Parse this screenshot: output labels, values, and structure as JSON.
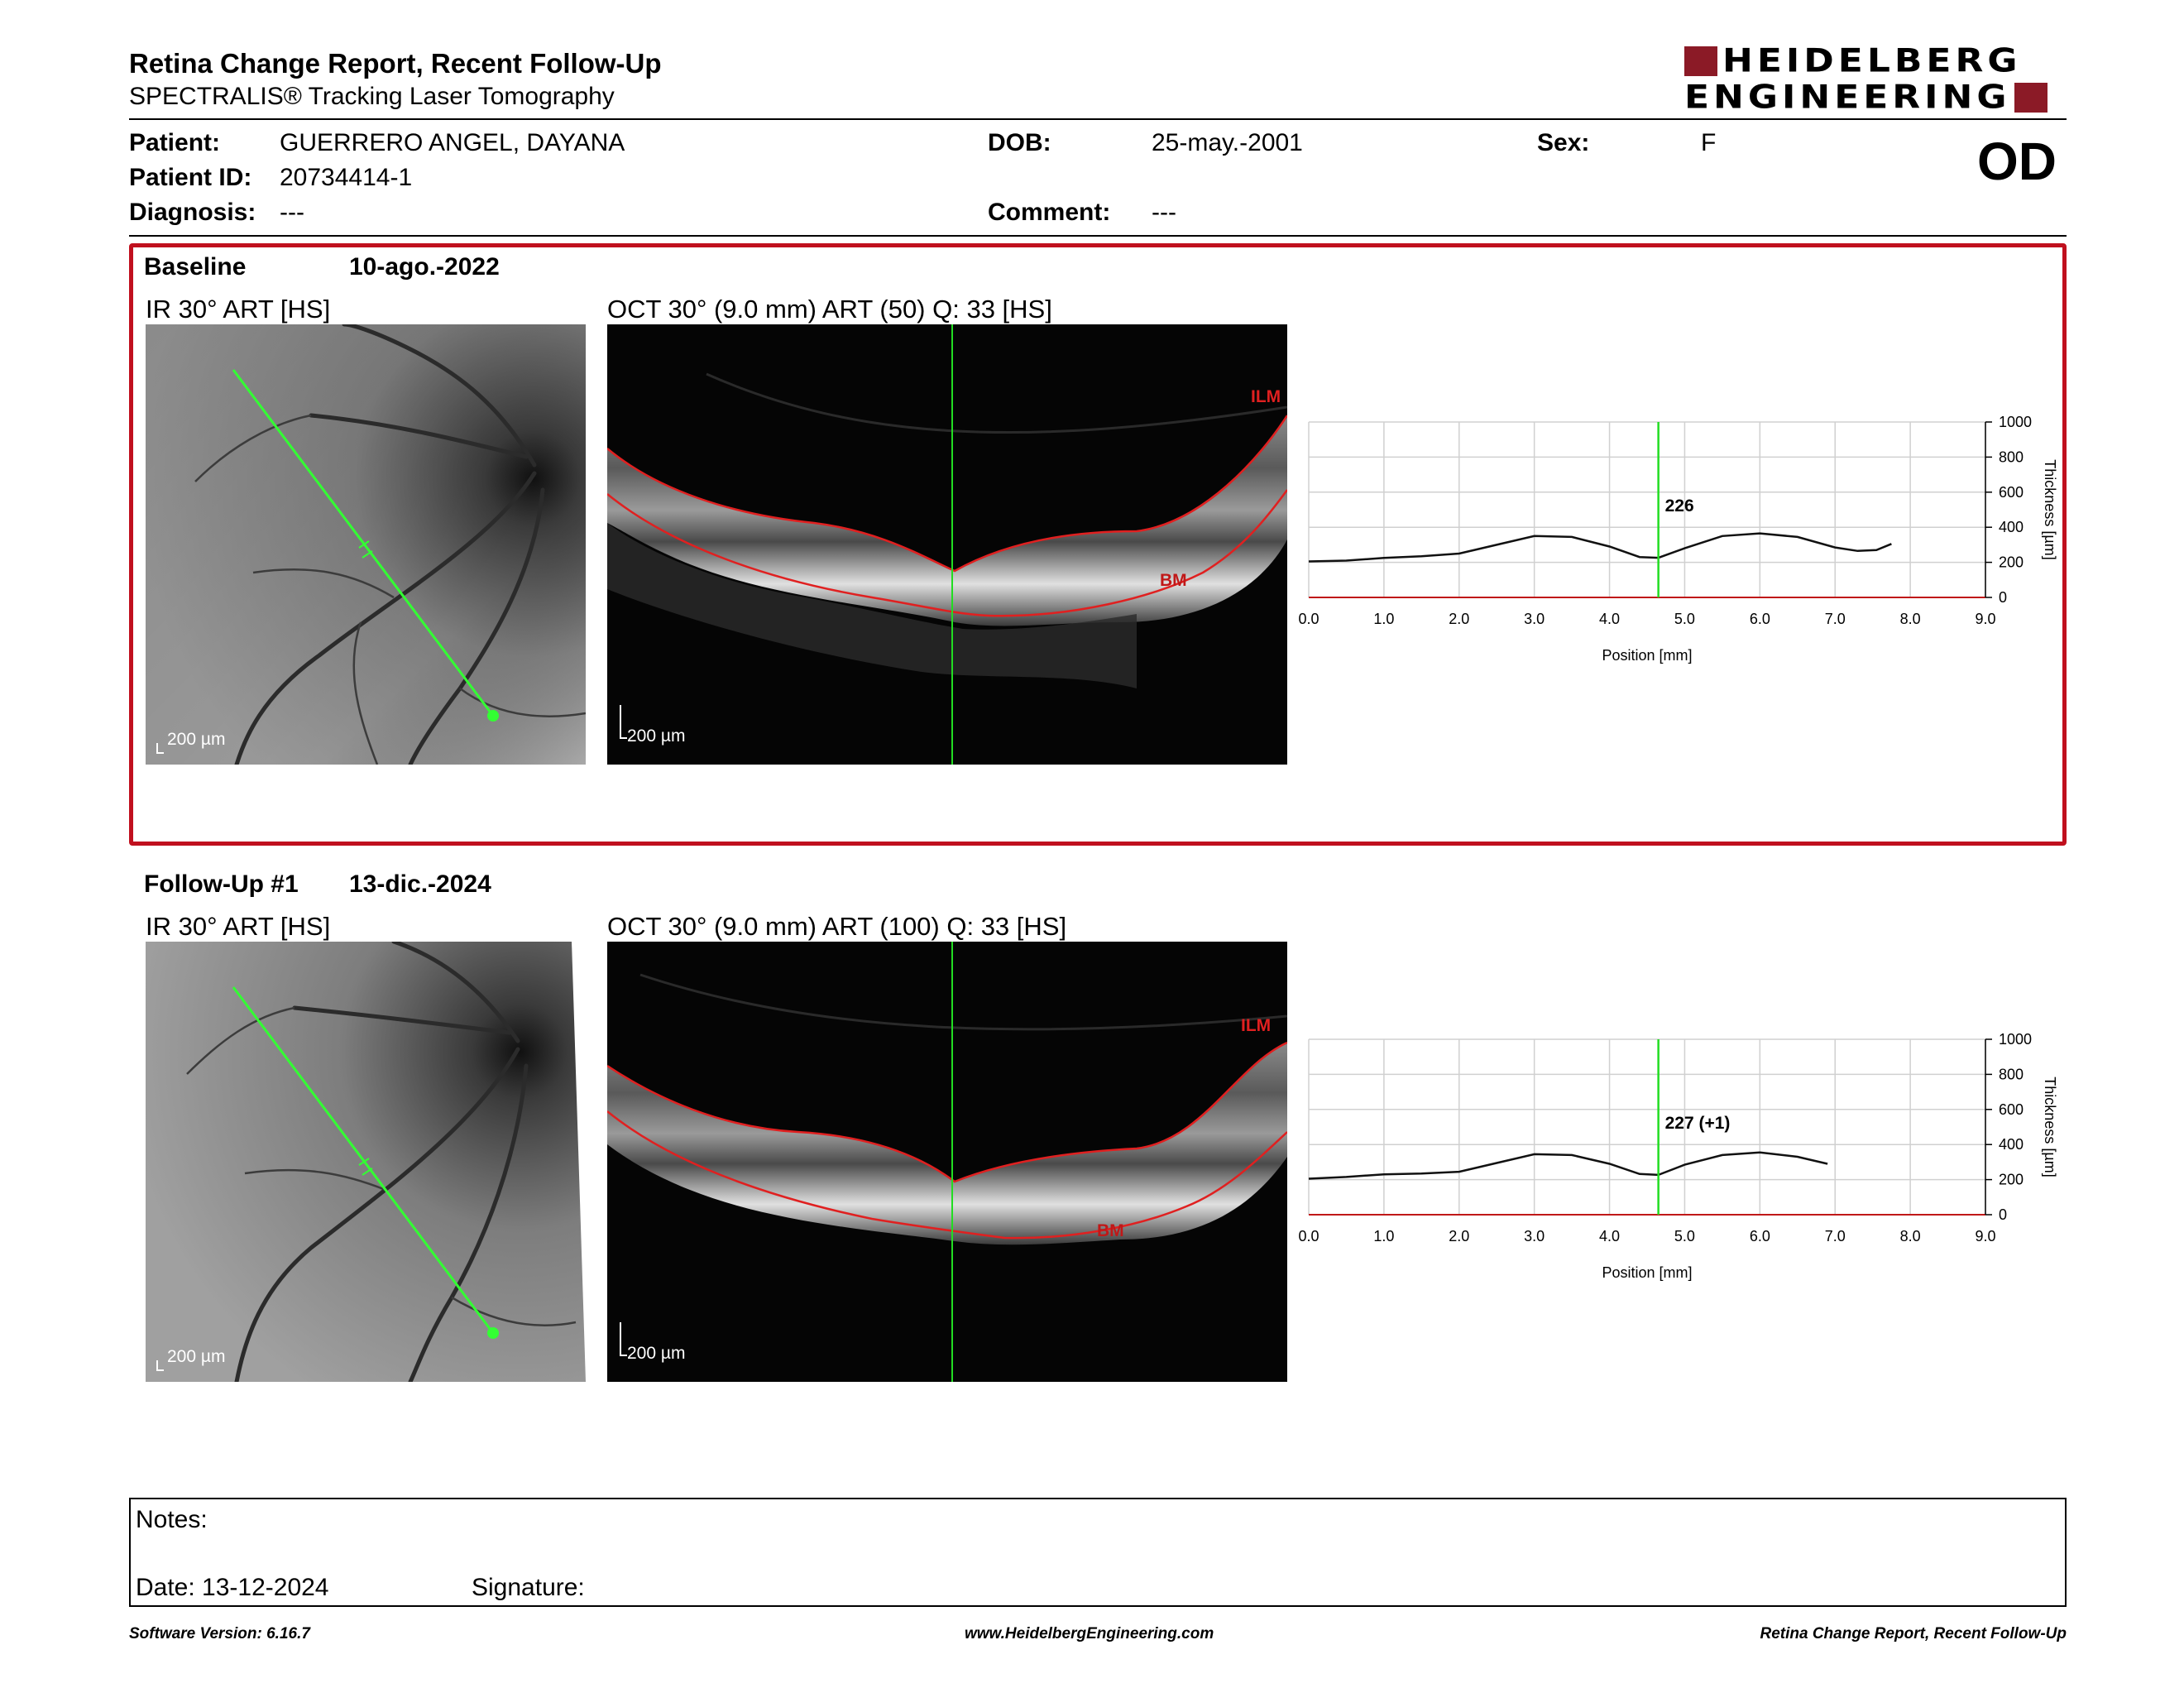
{
  "header": {
    "title": "Retina Change Report, Recent Follow-Up",
    "subtitle": "SPECTRALIS® Tracking Laser Tomography",
    "logo_line1": "HEIDELBERG",
    "logo_line2": "ENGINEERING",
    "eye": "OD"
  },
  "patient": {
    "name_label": "Patient:",
    "name": "GUERRERO ANGEL, DAYANA",
    "id_label": "Patient ID:",
    "id": "20734414-1",
    "diagnosis_label": "Diagnosis:",
    "diagnosis": "---",
    "dob_label": "DOB:",
    "dob": "25-may.-2001",
    "comment_label": "Comment:",
    "comment": "---",
    "sex_label": "Sex:",
    "sex": "F"
  },
  "exams": [
    {
      "title": "Baseline",
      "date": "10-ago.-2022",
      "ir_label": "IR 30° ART [HS]",
      "oct_label": "OCT 30° (9.0 mm) ART (50) Q: 33 [HS]",
      "scale_ir": "200 µm",
      "scale_oct": "200 µm",
      "ilm": "ILM",
      "bm": "BM"
    },
    {
      "title": "Follow-Up #1",
      "date": "13-dic.-2024",
      "ir_label": "IR 30° ART [HS]",
      "oct_label": "OCT 30° (9.0 mm) ART (100) Q: 33 [HS]",
      "scale_ir": "200 µm",
      "scale_oct": "200 µm",
      "ilm": "ILM",
      "bm": "BM"
    }
  ],
  "chart_data": [
    {
      "type": "line",
      "xlabel": "Position [mm]",
      "ylabel": "Thickness [µm]",
      "xlim": [
        0,
        9
      ],
      "ylim": [
        0,
        1000
      ],
      "xticks": [
        "0.0",
        "1.0",
        "2.0",
        "3.0",
        "4.0",
        "5.0",
        "6.0",
        "7.0",
        "8.0",
        "9.0"
      ],
      "yticks": [
        "0",
        "200",
        "400",
        "600",
        "800",
        "1000"
      ],
      "grid": true,
      "marker_x": 4.65,
      "marker_label": "226",
      "series": [
        {
          "x": [
            0,
            0.5,
            1.0,
            1.5,
            2.0,
            2.5,
            3.0,
            3.5,
            4.0,
            4.4,
            4.65,
            5.0,
            5.5,
            6.0,
            6.5,
            7.0,
            7.3,
            7.55,
            7.75
          ],
          "y": [
            205,
            210,
            225,
            235,
            250,
            300,
            350,
            345,
            290,
            230,
            226,
            280,
            350,
            365,
            345,
            285,
            265,
            270,
            305
          ]
        }
      ]
    },
    {
      "type": "line",
      "xlabel": "Position [mm]",
      "ylabel": "Thickness [µm]",
      "xlim": [
        0,
        9
      ],
      "ylim": [
        0,
        1000
      ],
      "xticks": [
        "0.0",
        "1.0",
        "2.0",
        "3.0",
        "4.0",
        "5.0",
        "6.0",
        "7.0",
        "8.0",
        "9.0"
      ],
      "yticks": [
        "0",
        "200",
        "400",
        "600",
        "800",
        "1000"
      ],
      "grid": true,
      "marker_x": 4.65,
      "marker_label": "227 (+1)",
      "series": [
        {
          "x": [
            0,
            0.5,
            1.0,
            1.5,
            2.0,
            2.5,
            3.0,
            3.5,
            4.0,
            4.4,
            4.65,
            5.0,
            5.5,
            6.0,
            6.5,
            6.9
          ],
          "y": [
            205,
            215,
            230,
            235,
            245,
            295,
            345,
            340,
            290,
            232,
            227,
            285,
            340,
            355,
            330,
            290
          ]
        }
      ]
    }
  ],
  "notes": {
    "label": "Notes:",
    "date_label": "Date: 13-12-2024",
    "signature_label": "Signature:"
  },
  "footer": {
    "left": "Software Version: 6.16.7",
    "center": "www.HeidelbergEngineering.com",
    "right": "Retina Change Report, Recent Follow-Up"
  }
}
